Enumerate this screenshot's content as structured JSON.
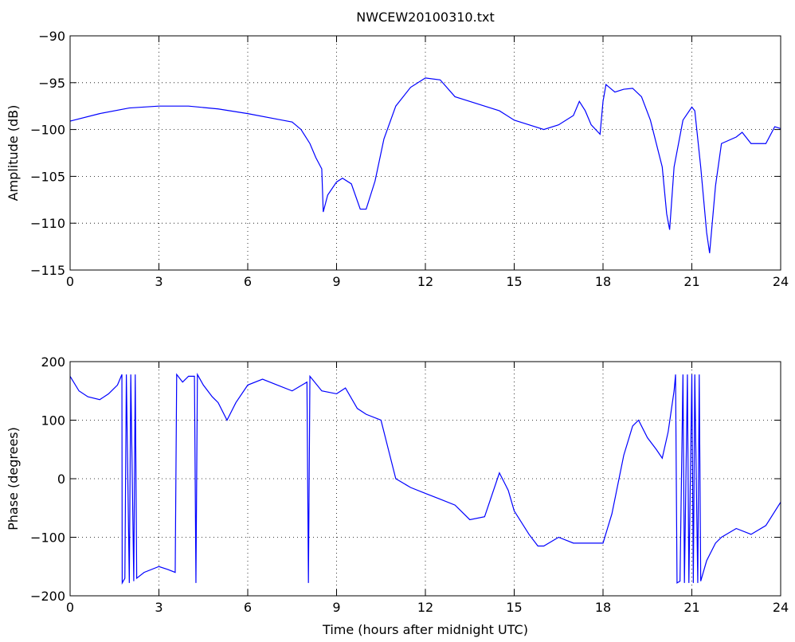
{
  "chart_data": [
    {
      "type": "line",
      "title": "NWCEW20100310.txt",
      "ylabel": "Amplitude (dB)",
      "grid": true,
      "color": "#0000ff",
      "xlim": [
        0,
        24
      ],
      "xticks": [
        0,
        3,
        6,
        9,
        12,
        15,
        18,
        21,
        24
      ],
      "ylim": [
        -115,
        -90
      ],
      "yticks": [
        {
          "value": -115,
          "label": "−115"
        },
        {
          "value": -110,
          "label": "−110"
        },
        {
          "value": -105,
          "label": "−105"
        },
        {
          "value": -100,
          "label": "−100"
        },
        {
          "value": -95,
          "label": "−95"
        },
        {
          "value": -90,
          "label": "−90"
        }
      ],
      "x": [
        0,
        1,
        2,
        3,
        4,
        5,
        6,
        7,
        7.5,
        7.8,
        8.1,
        8.3,
        8.5,
        8.55,
        8.7,
        9,
        9.2,
        9.5,
        9.8,
        10,
        10.3,
        10.6,
        11,
        11.5,
        12,
        12.5,
        13,
        13.5,
        14,
        14.5,
        15,
        15.5,
        16,
        16.5,
        17,
        17.2,
        17.4,
        17.6,
        17.9,
        18,
        18.1,
        18.4,
        18.7,
        19,
        19.3,
        19.6,
        20,
        20.15,
        20.25,
        20.4,
        20.7,
        21,
        21.1,
        21.3,
        21.5,
        21.6,
        21.8,
        22,
        22.5,
        22.7,
        23,
        23.5,
        23.8,
        24
      ],
      "values": [
        -99.1,
        -98.3,
        -97.7,
        -97.5,
        -97.5,
        -97.8,
        -98.3,
        -98.9,
        -99.2,
        -100,
        -101.5,
        -103,
        -104.2,
        -108.8,
        -107,
        -105.6,
        -105.2,
        -105.8,
        -108.5,
        -108.5,
        -105.5,
        -101,
        -97.5,
        -95.5,
        -94.5,
        -94.7,
        -96.5,
        -97,
        -97.5,
        -98,
        -99,
        -99.5,
        -100,
        -99.5,
        -98.5,
        -97,
        -98,
        -99.5,
        -100.5,
        -97,
        -95.2,
        -96,
        -95.7,
        -95.6,
        -96.5,
        -99,
        -104,
        -109,
        -110.7,
        -104,
        -99,
        -97.6,
        -98,
        -104,
        -111,
        -113.2,
        -106,
        -101.5,
        -100.8,
        -100.3,
        -101.5,
        -101.5,
        -99.7,
        -99.9
      ]
    },
    {
      "type": "line",
      "ylabel": "Phase (degrees)",
      "xlabel": "Time (hours after midnight UTC)",
      "grid": true,
      "color": "#0000ff",
      "xlim": [
        0,
        24
      ],
      "xticks": [
        0,
        3,
        6,
        9,
        12,
        15,
        18,
        21,
        24
      ],
      "ylim": [
        -200,
        200
      ],
      "yticks": [
        {
          "value": -200,
          "label": "−200"
        },
        {
          "value": -100,
          "label": "−100"
        },
        0,
        100,
        200
      ],
      "x": [
        0,
        0.3,
        0.6,
        1,
        1.3,
        1.6,
        1.75,
        1.76,
        1.85,
        1.9,
        2.0,
        2.05,
        2.15,
        2.2,
        2.25,
        2.5,
        3,
        3.3,
        3.55,
        3.6,
        3.8,
        4,
        4.2,
        4.25,
        4.3,
        4.5,
        4.8,
        5,
        5.3,
        5.6,
        6,
        6.5,
        7,
        7.5,
        8,
        8.05,
        8.1,
        8.5,
        9,
        9.3,
        9.7,
        10,
        10.5,
        10.8,
        11,
        11.5,
        12,
        12.5,
        13,
        13.5,
        14,
        14.5,
        14.8,
        15,
        15.5,
        15.8,
        16,
        16.5,
        17,
        17.5,
        18,
        18.3,
        18.7,
        19,
        19.2,
        19.5,
        19.8,
        20,
        20.2,
        20.4,
        20.45,
        20.5,
        20.6,
        20.7,
        20.75,
        20.85,
        20.9,
        21,
        21.05,
        21.1,
        21.2,
        21.25,
        21.3,
        21.5,
        21.8,
        22,
        22.5,
        23,
        23.5,
        24
      ],
      "values": [
        175,
        150,
        140,
        135,
        145,
        160,
        178,
        -178,
        -170,
        178,
        -178,
        178,
        -175,
        178,
        -170,
        -160,
        -150,
        -155,
        -160,
        178,
        165,
        175,
        175,
        -178,
        178,
        160,
        140,
        130,
        100,
        130,
        160,
        170,
        160,
        150,
        165,
        -178,
        175,
        150,
        145,
        155,
        120,
        110,
        100,
        40,
        0,
        -15,
        -25,
        -35,
        -45,
        -70,
        -65,
        10,
        -20,
        -55,
        -95,
        -115,
        -115,
        -100,
        -110,
        -110,
        -110,
        -60,
        40,
        90,
        100,
        70,
        50,
        35,
        80,
        150,
        178,
        -178,
        -175,
        178,
        -178,
        178,
        -178,
        178,
        -178,
        178,
        -178,
        178,
        -175,
        -140,
        -110,
        -100,
        -85,
        -95,
        -80,
        -40
      ]
    }
  ]
}
